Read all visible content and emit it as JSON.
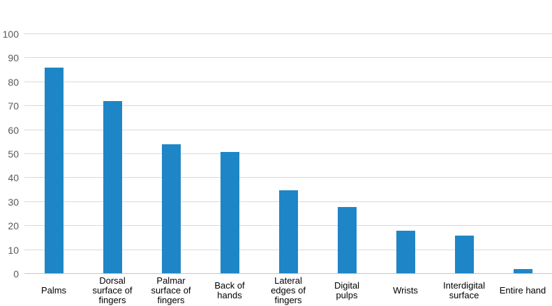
{
  "chart_data": {
    "type": "bar",
    "title": "",
    "xlabel": "",
    "ylabel": "",
    "categories": [
      "Palms",
      "Dorsal surface of fingers",
      "Palmar surface of fingers",
      "Back of hands",
      "Lateral edges of fingers",
      "Digital pulps",
      "Wrists",
      "Interdigital surface",
      "Entire hand"
    ],
    "category_label_lines": [
      "Palms",
      "Dorsal\nsurface of\nfingers",
      "Palmar\nsurface of\nfingers",
      "Back of\nhands",
      "Lateral\nedges of\nfingers",
      "Digital\npulps",
      "Wrists",
      "Interdigital\nsurface",
      "Entire hand"
    ],
    "values": [
      86,
      72,
      54,
      51,
      35,
      28,
      18,
      16,
      2
    ],
    "ylim": [
      0,
      100
    ],
    "yticks": [
      0,
      10,
      20,
      30,
      40,
      50,
      60,
      70,
      80,
      90,
      100
    ],
    "grid": true,
    "legend": "none",
    "colors": {
      "bar": "#1e86c6",
      "gridline": "#d9d9d9",
      "axis_line": "#c6c6c6",
      "ytick_label": "#595959",
      "xtick_label": "#000000",
      "background": "#ffffff"
    }
  }
}
